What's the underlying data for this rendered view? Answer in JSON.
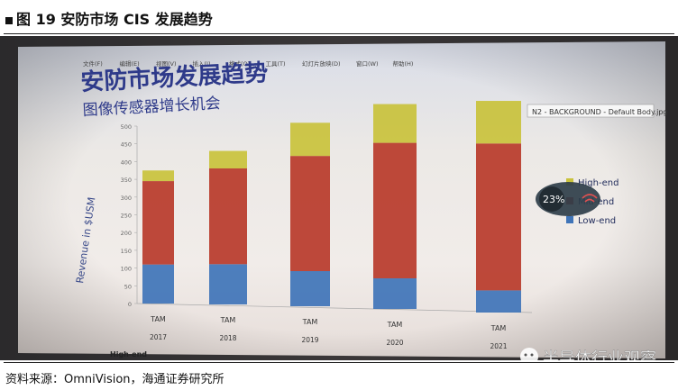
{
  "figure": {
    "title": "图 19  安防市场 CIS 发展趋势",
    "source": "资料来源：OmniVision，海通证券研究所"
  },
  "slide": {
    "menu": [
      "文件(F)",
      "编辑(E)",
      "视图(V)",
      "插入(I)",
      "格式(O)",
      "工具(T)",
      "幻灯片放映(D)",
      "窗口(W)",
      "帮助(H)"
    ],
    "title": "安防市场发展趋势",
    "subtitle": "图像传感器增长机会",
    "note_label": "N2 - BACKGROUND - Default Body.jpg",
    "overlay_value": "23%",
    "watermark": "半导体行业观察",
    "bottom_label": "High-end"
  },
  "chart_data": {
    "type": "bar",
    "stacked": true,
    "categories": [
      "TAM 2017",
      "TAM 2018",
      "TAM 2019",
      "TAM 2020",
      "TAM 2021"
    ],
    "category_top": [
      "TAM",
      "TAM",
      "TAM",
      "TAM",
      "TAM"
    ],
    "category_bottom": [
      "2017",
      "2018",
      "2019",
      "2020",
      "2021"
    ],
    "ylabel": "Revenue in $USM",
    "ylim": [
      0,
      500
    ],
    "yticks": [
      0,
      50,
      100,
      150,
      200,
      250,
      300,
      350,
      400,
      450,
      500
    ],
    "series": [
      {
        "name": "Low-end",
        "color": "#3f74b8",
        "values": [
          110,
          108,
          90,
          75,
          52
        ]
      },
      {
        "name": "Mid-end",
        "color": "#b83a2a",
        "values": [
          235,
          257,
          295,
          332,
          345
        ]
      },
      {
        "name": "High-end",
        "color": "#c9c23c",
        "values": [
          30,
          47,
          85,
          95,
          100
        ]
      }
    ],
    "legend_position": "right"
  }
}
